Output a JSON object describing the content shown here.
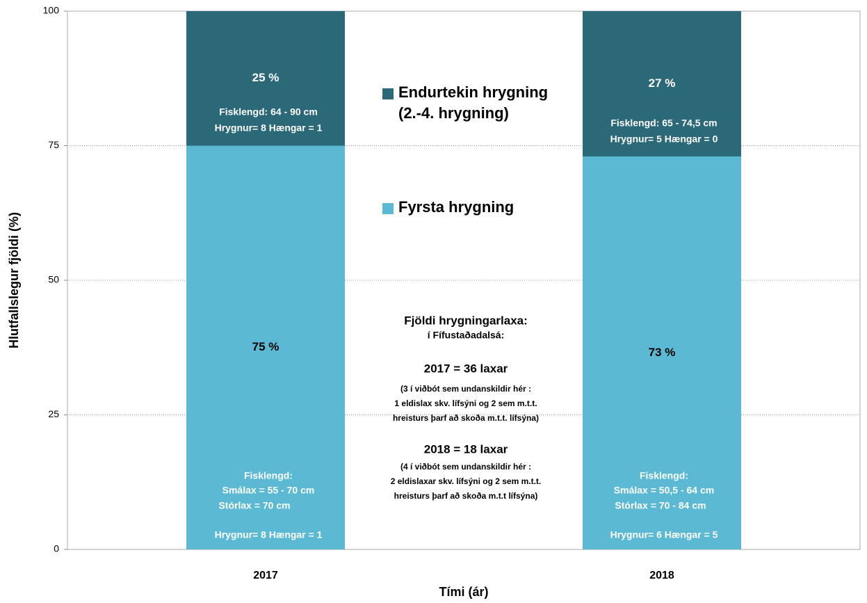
{
  "chart_data": {
    "type": "stacked_bar",
    "categories": [
      "2017",
      "2018"
    ],
    "series": [
      {
        "name": "Fyrsta hrygning",
        "color": "#5bb9d3",
        "values": [
          75,
          73
        ],
        "value_labels": [
          "75 %",
          "73 %"
        ]
      },
      {
        "name": "Endurtekin hrygning (2.-4. hrygning)",
        "color": "#2b6979",
        "values": [
          25,
          27
        ],
        "value_labels": [
          "25 %",
          "27 %"
        ]
      }
    ],
    "ylabel": "Hlutfallslegur fjöldi (%)",
    "xlabel": "Tími (ár)",
    "ylim": [
      0,
      100
    ],
    "yticks": [
      0,
      25,
      50,
      75,
      100
    ],
    "grid": true,
    "annotations": [
      "Fisklengd:  64 - 90 cm",
      "Hrygnur= 8  Hængar = 1",
      "Fisklengd:",
      "Smálax =  55 - 70 cm",
      "Stórlax =  70 cm",
      "Hrygnur= 8  Hængar = 1",
      "Fisklengd:  65 - 74,5 cm",
      "Hrygnur= 5  Hængar = 0",
      "Fisklengd:",
      "Smálax =   50,5 - 64 cm",
      "Stórlax =   70 -  84 cm",
      "Hrygnur= 6  Hængar = 5",
      "Fjöldi hrygningarlaxa:",
      "í Fífustaðadalsá:",
      "2017 = 36 laxar",
      "(3 í viðbót sem undanskildir hér :",
      "1 eldislax skv. lífsýni og 2 sem m.t.t.",
      "hreisturs þarf að skoða m.t.t. lífsýna)",
      "2018 = 18 laxar",
      "(4 í viðbót sem undanskildir hér :",
      "2 eldislaxar skv. lífsýni og 2 sem m.t.t.",
      "hreisturs þarf að skoða m.t.t lífsýna)"
    ]
  }
}
